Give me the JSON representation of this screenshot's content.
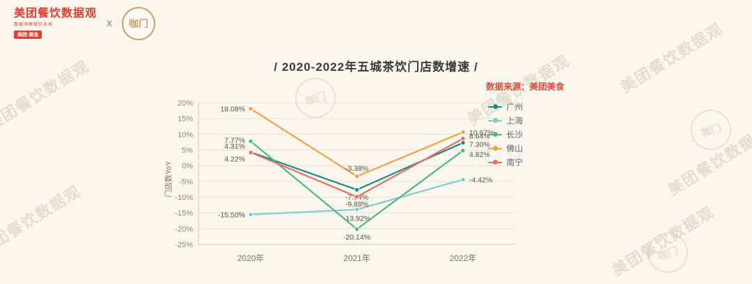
{
  "brand": {
    "logo_title": "美团餐饮数据观",
    "logo_tagline": "数据洞察餐饮未来",
    "logo_badge": "美团·美食",
    "separator": "X",
    "partner_logo": "咖门"
  },
  "title": "/ 2020-2022年五城茶饮门店数增速 /",
  "source_label": "数据来源：美团美食",
  "watermark": {
    "text": "美团餐饮数据观",
    "stamp": "咖门"
  },
  "chart_data": {
    "type": "line",
    "title": "2020-2022年五城茶饮门店数增速",
    "categories": [
      "2020年",
      "2021年",
      "2022年"
    ],
    "ylabel": "门店数YoY",
    "ylim": [
      -25,
      20
    ],
    "ytick_step": 5,
    "grid": true,
    "legend_position": "right",
    "series": [
      {
        "name": "广州",
        "color": "#1e8a80",
        "values": [
          4.31,
          -7.64,
          7.3
        ],
        "label_anchor": [
          "end",
          "middle",
          "start"
        ],
        "label_dx": [
          -8,
          0,
          9
        ],
        "label_dy": [
          -5,
          14,
          6
        ]
      },
      {
        "name": "上海",
        "color": "#82cdc3",
        "values": [
          -15.5,
          -13.92,
          -4.42
        ],
        "label_anchor": [
          "end",
          "middle",
          "start"
        ],
        "label_dx": [
          -8,
          0,
          9
        ],
        "label_dy": [
          4,
          16,
          4
        ]
      },
      {
        "name": "长沙",
        "color": "#4eb585",
        "values": [
          7.77,
          -20.14,
          4.82
        ],
        "label_anchor": [
          "end",
          "middle",
          "start"
        ],
        "label_dx": [
          -8,
          0,
          9
        ],
        "label_dy": [
          2,
          15,
          9
        ]
      },
      {
        "name": "佛山",
        "color": "#f0a33c",
        "values": [
          18.08,
          -3.38,
          10.67
        ],
        "label_anchor": [
          "end",
          "middle",
          "start"
        ],
        "label_dx": [
          -8,
          0,
          9
        ],
        "label_dy": [
          4,
          -8,
          4
        ]
      },
      {
        "name": "南宁",
        "color": "#e96e5c",
        "values": [
          4.22,
          -9.88,
          8.64
        ],
        "label_anchor": [
          "end",
          "middle",
          "start"
        ],
        "label_dx": [
          -8,
          0,
          9
        ],
        "label_dy": [
          13,
          14,
          0
        ]
      }
    ]
  }
}
